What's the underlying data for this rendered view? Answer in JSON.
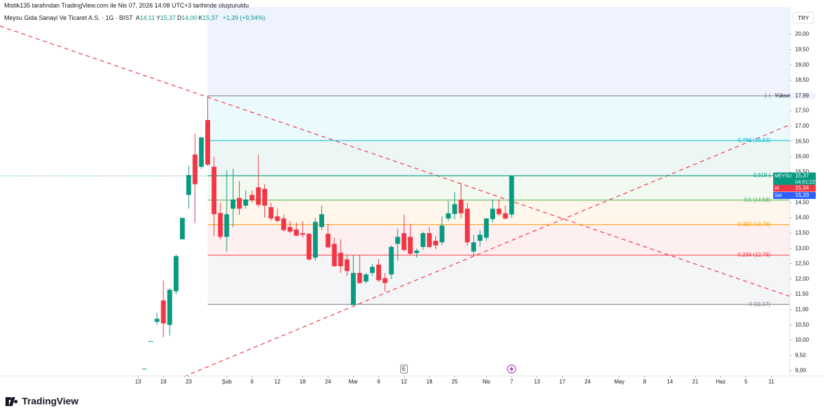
{
  "header": {
    "credit": "Mistik135 tarafından TradingView.com ile Nis 07, 2026 14:08 UTC+3 tarihinde oluşturuldu",
    "symbol": "Meysu Gida Sanayi Ve Ticaret A.S. · 1G · BIST",
    "ohlc": [
      {
        "key": "A",
        "text": "14,11"
      },
      {
        "key": "Y",
        "text": "15,37"
      },
      {
        "key": "D",
        "text": "14,00"
      },
      {
        "key": "K",
        "text": "15,37"
      }
    ],
    "change": "+1,39 (+9,94%)"
  },
  "currency": "TRY",
  "logo": "TradingView",
  "chart_data": {
    "type": "candlestick",
    "up_color": "#089981",
    "down_color": "#f23645",
    "x": [
      1,
      2,
      3,
      4,
      5,
      6,
      7,
      8,
      9,
      10,
      11,
      12,
      13,
      14,
      15,
      16,
      17,
      18,
      19,
      20,
      21,
      22,
      23,
      24,
      25,
      26,
      27,
      28,
      29,
      30,
      31,
      32,
      33,
      34,
      35,
      36,
      37,
      38,
      39,
      40,
      41,
      42,
      43,
      44,
      45,
      46,
      47,
      48,
      49,
      50,
      51,
      52,
      53,
      54,
      55,
      56,
      57,
      58,
      59
    ],
    "open": [
      9.07,
      9.97,
      10.6,
      11.3,
      10.5,
      11.6,
      13.3,
      14.75,
      16.07,
      15.67,
      17.2,
      15.67,
      14.16,
      13.38,
      14.3,
      14.65,
      14.4,
      14.75,
      15.0,
      14.95,
      14.35,
      14.05,
      13.98,
      13.7,
      13.62,
      13.5,
      13.48,
      12.7,
      13.7,
      13.48,
      13.15,
      12.86,
      12.64,
      11.15,
      12.2,
      11.92,
      12.2,
      12.47,
      12.03,
      12.15,
      13.15,
      13.5,
      13.38,
      12.85,
      13.05,
      13.5,
      13.25,
      13.2,
      13.98,
      14.13,
      14.6,
      14.3,
      12.9,
      13.25,
      13.35,
      13.96,
      14.3,
      14.15,
      14.11
    ],
    "high": [
      9.07,
      9.97,
      10.9,
      11.95,
      11.7,
      12.8,
      14.0,
      15.7,
      16.75,
      16.65,
      17.99,
      16.0,
      14.5,
      15.55,
      15.6,
      15.2,
      14.9,
      14.9,
      16.05,
      15.1,
      14.5,
      14.3,
      14.1,
      13.9,
      13.85,
      13.9,
      13.5,
      14.0,
      14.4,
      13.8,
      13.35,
      13.3,
      12.8,
      12.8,
      12.8,
      12.2,
      12.5,
      12.65,
      12.2,
      13.1,
      13.65,
      14.1,
      13.8,
      13.0,
      13.55,
      13.7,
      13.4,
      14.05,
      14.55,
      14.85,
      15.15,
      14.5,
      13.45,
      13.6,
      14.0,
      14.6,
      14.6,
      14.4,
      15.37
    ],
    "low": [
      9.07,
      9.97,
      10.5,
      10.1,
      10.15,
      11.5,
      13.3,
      14.3,
      13.83,
      15.6,
      15.7,
      13.4,
      13.3,
      12.9,
      13.7,
      14.1,
      14.3,
      14.5,
      14.35,
      14.0,
      13.9,
      13.85,
      13.55,
      13.5,
      13.4,
      13.35,
      12.6,
      12.6,
      13.6,
      13.0,
      12.4,
      12.2,
      12.1,
      11.17,
      11.85,
      11.85,
      12.1,
      11.9,
      11.6,
      12.0,
      12.6,
      12.9,
      12.8,
      12.7,
      12.95,
      13.0,
      12.98,
      13.1,
      13.9,
      13.95,
      13.98,
      13.1,
      12.75,
      13.05,
      13.25,
      13.85,
      14.08,
      13.95,
      14.0
    ],
    "close": [
      9.07,
      9.97,
      10.7,
      10.55,
      11.65,
      12.75,
      14.0,
      15.4,
      15.1,
      16.63,
      15.74,
      14.12,
      13.38,
      14.12,
      14.6,
      14.3,
      14.6,
      14.57,
      14.43,
      14.4,
      13.98,
      13.9,
      13.6,
      13.55,
      13.42,
      13.45,
      12.64,
      13.87,
      14.12,
      13.04,
      12.42,
      12.42,
      12.26,
      12.2,
      11.87,
      12.15,
      12.4,
      11.96,
      11.87,
      13.05,
      13.38,
      12.95,
      12.83,
      12.93,
      13.5,
      13.05,
      13.1,
      13.75,
      14.15,
      14.45,
      14.15,
      13.2,
      13.2,
      13.45,
      13.98,
      14.3,
      14.12,
      13.98,
      15.37
    ],
    "xlim": [
      -21.8,
      102.9
    ],
    "xticks": [
      {
        "value": 0,
        "label": "13"
      },
      {
        "value": 4,
        "label": "19"
      },
      {
        "value": 8,
        "label": "23"
      },
      {
        "value": 14,
        "label": "Şub"
      },
      {
        "value": 18,
        "label": "6"
      },
      {
        "value": 22,
        "label": "12"
      },
      {
        "value": 26,
        "label": "18"
      },
      {
        "value": 30,
        "label": "24"
      },
      {
        "value": 34,
        "label": "Mar"
      },
      {
        "value": 38,
        "label": "6"
      },
      {
        "value": 42,
        "label": "12"
      },
      {
        "value": 46,
        "label": "18"
      },
      {
        "value": 50,
        "label": "25"
      },
      {
        "value": 55,
        "label": "Nis"
      },
      {
        "value": 59,
        "label": "7"
      },
      {
        "value": 63,
        "label": "13"
      },
      {
        "value": 67,
        "label": "17"
      },
      {
        "value": 71,
        "label": "24"
      },
      {
        "value": 76,
        "label": "May"
      },
      {
        "value": 80,
        "label": "8"
      },
      {
        "value": 84,
        "label": "14"
      },
      {
        "value": 88,
        "label": "21"
      },
      {
        "value": 92,
        "label": "Haz"
      },
      {
        "value": 96,
        "label": "5"
      },
      {
        "value": 100,
        "label": "11"
      }
    ],
    "ylim": [
      8.9,
      20.9
    ],
    "yticks": [
      {
        "value": 9,
        "label": "9,00"
      },
      {
        "value": 9.5,
        "label": "9,50"
      },
      {
        "value": 10,
        "label": "10,00"
      },
      {
        "value": 10.5,
        "label": "10,50"
      },
      {
        "value": 11,
        "label": "11,00"
      },
      {
        "value": 11.5,
        "label": "11,50"
      },
      {
        "value": 12,
        "label": "12,00"
      },
      {
        "value": 12.5,
        "label": "12,50"
      },
      {
        "value": 13,
        "label": "13,00"
      },
      {
        "value": 13.5,
        "label": "13,50"
      },
      {
        "value": 14,
        "label": "14,00"
      },
      {
        "value": 14.5,
        "label": "14,50"
      },
      {
        "value": 15,
        "label": "15,00"
      },
      {
        "value": 15.5,
        "label": "15,50"
      },
      {
        "value": 16,
        "label": "16,00"
      },
      {
        "value": 16.5,
        "label": "16,50"
      },
      {
        "value": 17,
        "label": "17,00"
      },
      {
        "value": 17.5,
        "label": "17,50"
      },
      {
        "value": 18,
        "label": "18,00"
      },
      {
        "value": 18.5,
        "label": "18,50"
      },
      {
        "value": 19,
        "label": "19,00"
      },
      {
        "value": 19.5,
        "label": "19,50"
      },
      {
        "value": 20,
        "label": "20,00"
      }
    ],
    "fib_levels": [
      {
        "label": "1 (",
        "extra": "Yüksek",
        "value": 17.99,
        "color": "#787b86"
      },
      {
        "label": "0,786 (16,53)",
        "value": 16.53,
        "color": "#00bcd4"
      },
      {
        "label": "0,618 (",
        "value": 15.38,
        "color": "#089981"
      },
      {
        "label": "0,5 (14,58)",
        "value": 14.58,
        "color": "#4caf50"
      },
      {
        "label": "0,382 (13,78)",
        "value": 13.78,
        "color": "#ff9800"
      },
      {
        "label": "0,236 (12,78)",
        "value": 12.78,
        "color": "#f23645"
      },
      {
        "label": "0 (11,17)",
        "value": 11.17,
        "color": "#787b86"
      }
    ],
    "fib_top_color": "#2962ff",
    "price_tags": [
      {
        "value": 17.99,
        "text": "17,99",
        "color": "#f0f3fa",
        "text_color": "#131722"
      },
      {
        "name": "MEYSU",
        "value": 15.37,
        "text": "15,37",
        "sub": "04:01:22",
        "color": "#089981",
        "text_color": "#ffffff"
      },
      {
        "name": "Al",
        "value": 15.34,
        "text": "15,34",
        "color": "#f23645",
        "text_color": "#ffffff"
      },
      {
        "name": "Sat",
        "value": 15.33,
        "text": "15,33",
        "color": "#2962ff",
        "text_color": "#ffffff"
      }
    ],
    "events": [
      {
        "x": 42,
        "label": "E"
      }
    ]
  }
}
